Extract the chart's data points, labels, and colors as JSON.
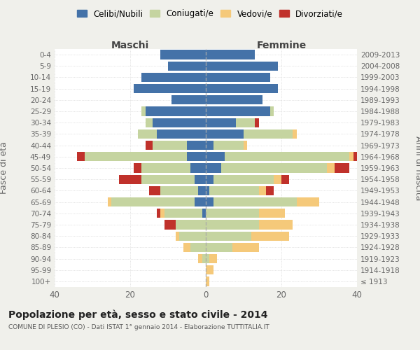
{
  "age_groups": [
    "100+",
    "95-99",
    "90-94",
    "85-89",
    "80-84",
    "75-79",
    "70-74",
    "65-69",
    "60-64",
    "55-59",
    "50-54",
    "45-49",
    "40-44",
    "35-39",
    "30-34",
    "25-29",
    "20-24",
    "15-19",
    "10-14",
    "5-9",
    "0-4"
  ],
  "birth_years": [
    "≤ 1913",
    "1914-1918",
    "1919-1923",
    "1924-1928",
    "1929-1933",
    "1934-1938",
    "1939-1943",
    "1944-1948",
    "1949-1953",
    "1954-1958",
    "1959-1963",
    "1964-1968",
    "1969-1973",
    "1974-1978",
    "1979-1983",
    "1984-1988",
    "1989-1993",
    "1994-1998",
    "1999-2003",
    "2004-2008",
    "2009-2013"
  ],
  "males": {
    "celibe": [
      0,
      0,
      0,
      0,
      0,
      0,
      1,
      3,
      2,
      3,
      4,
      5,
      5,
      13,
      14,
      16,
      9,
      19,
      17,
      10,
      12
    ],
    "coniugato": [
      0,
      0,
      1,
      4,
      7,
      8,
      10,
      22,
      10,
      14,
      13,
      27,
      9,
      5,
      2,
      1,
      0,
      0,
      0,
      0,
      0
    ],
    "vedovo": [
      0,
      0,
      1,
      2,
      1,
      0,
      1,
      1,
      0,
      0,
      0,
      0,
      0,
      0,
      0,
      0,
      0,
      0,
      0,
      0,
      0
    ],
    "divorziato": [
      0,
      0,
      0,
      0,
      0,
      3,
      1,
      0,
      3,
      6,
      2,
      2,
      2,
      0,
      0,
      0,
      0,
      0,
      0,
      0,
      0
    ]
  },
  "females": {
    "nubile": [
      0,
      0,
      0,
      0,
      0,
      0,
      0,
      2,
      1,
      2,
      4,
      5,
      2,
      10,
      8,
      17,
      15,
      19,
      17,
      19,
      13
    ],
    "coniugata": [
      0,
      0,
      1,
      7,
      12,
      14,
      14,
      22,
      13,
      16,
      28,
      33,
      8,
      13,
      5,
      1,
      0,
      0,
      0,
      0,
      0
    ],
    "vedova": [
      1,
      2,
      2,
      7,
      10,
      9,
      7,
      6,
      2,
      2,
      2,
      1,
      1,
      1,
      0,
      0,
      0,
      0,
      0,
      0,
      0
    ],
    "divorziata": [
      0,
      0,
      0,
      0,
      0,
      0,
      0,
      0,
      2,
      2,
      4,
      5,
      0,
      0,
      1,
      0,
      0,
      0,
      0,
      0,
      0
    ]
  },
  "colors": {
    "celibe": "#4472a8",
    "coniugato": "#c5d4a0",
    "vedovo": "#f5c97a",
    "divorziato": "#c0312b"
  },
  "title": "Popolazione per età, sesso e stato civile - 2014",
  "subtitle": "COMUNE DI PLESIO (CO) - Dati ISTAT 1° gennaio 2014 - Elaborazione TUTTITALIA.IT",
  "xlabel_left": "Maschi",
  "xlabel_right": "Femmine",
  "ylabel_left": "Fasce di età",
  "ylabel_right": "Anni di nascita",
  "xlim": 40,
  "background_color": "#f0f0eb",
  "bar_background": "#ffffff",
  "legend_labels": [
    "Celibi/Nubili",
    "Coniugati/e",
    "Vedovi/e",
    "Divorziati/e"
  ]
}
